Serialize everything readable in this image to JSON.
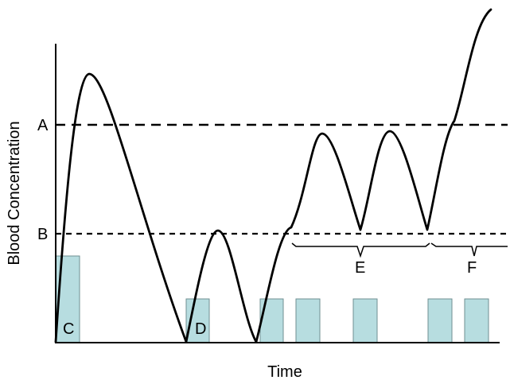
{
  "chart_data": {
    "type": "line",
    "title": "",
    "xlabel": "Time",
    "ylabel": "Blood Concentration",
    "grid": false,
    "levels": [
      {
        "label": "A",
        "style": "dashed"
      },
      {
        "label": "B",
        "style": "dashed"
      }
    ],
    "series": [
      {
        "values": []
      }
    ],
    "dose_bars": [
      {
        "label": "C"
      },
      {
        "label": "D"
      },
      {
        "label": ""
      },
      {
        "label": ""
      },
      {
        "label": ""
      },
      {
        "label": ""
      },
      {
        "label": ""
      }
    ],
    "brackets": [
      {
        "label": "E"
      },
      {
        "label": "F"
      }
    ],
    "colors": {
      "curve": "#000000",
      "bar_fill": "#b7dde0",
      "bar_stroke": "#6f8f92",
      "axis": "#000000"
    }
  }
}
